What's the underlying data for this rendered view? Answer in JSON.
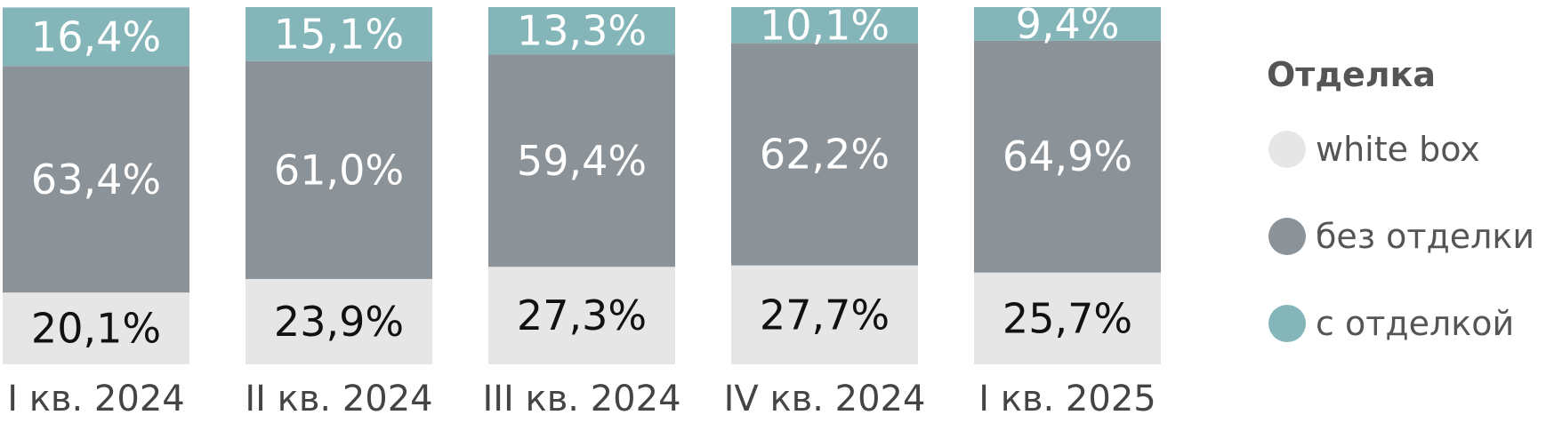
{
  "chart_data": {
    "type": "bar",
    "stacked": true,
    "categories": [
      "I кв. 2024",
      "II кв. 2024",
      "III кв. 2024",
      "IV кв. 2024",
      "I кв. 2025"
    ],
    "series": [
      {
        "name": "white box",
        "color": "#e6e6e6",
        "label_color": "#111111",
        "values": [
          20.1,
          23.9,
          27.3,
          27.7,
          25.7
        ],
        "labels": [
          "20,1%",
          "23,9%",
          "27,3%",
          "27,7%",
          "25,7%"
        ]
      },
      {
        "name": "без отделки",
        "color": "#8b9398",
        "label_color": "#ffffff",
        "values": [
          63.4,
          61.0,
          59.4,
          62.2,
          64.9
        ],
        "labels": [
          "63,4%",
          "61,0%",
          "59,4%",
          "62,2%",
          "64,9%"
        ]
      },
      {
        "name": "с отделкой",
        "color": "#84b5b9",
        "label_color": "#ffffff",
        "values": [
          16.4,
          15.1,
          13.3,
          10.1,
          9.4
        ],
        "labels": [
          "16,4%",
          "15,1%",
          "13,3%",
          "10,1%",
          "9,4%"
        ]
      }
    ],
    "ylim": [
      0,
      100
    ],
    "legend": {
      "title": "Отделка",
      "position": "right",
      "order": [
        "white box",
        "без отделки",
        "с отделкой"
      ]
    }
  }
}
